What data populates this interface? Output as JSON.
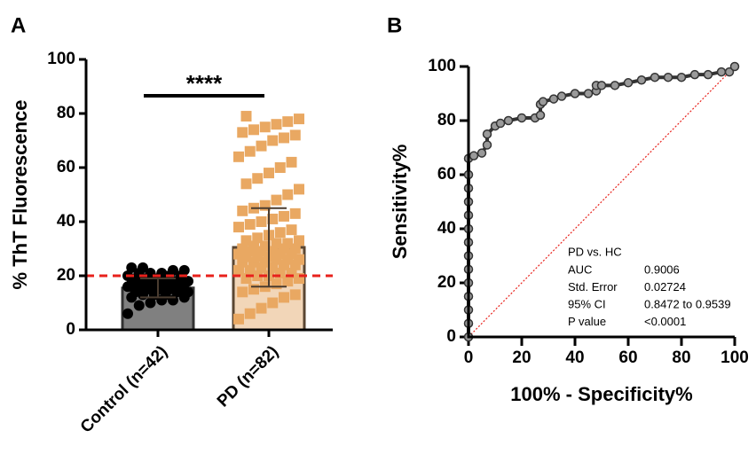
{
  "chart_data": [
    {
      "type": "bar",
      "panel_label": "A",
      "ylabel": "% ThT Fluorescence",
      "categories": [
        "Control (n=42)",
        "PD (n=82)"
      ],
      "values": [
        15.5,
        30.5
      ],
      "errors": [
        3.5,
        14.5
      ],
      "colors": [
        "#808080",
        "#f2d6b8"
      ],
      "point_colors": [
        "#000000",
        "#e9a862"
      ],
      "error_color": "#4a3c30",
      "points": [
        [
          6,
          9,
          10,
          11,
          11,
          12,
          12,
          13,
          13,
          13,
          14,
          14,
          14,
          15,
          15,
          15,
          15,
          16,
          16,
          16,
          16,
          17,
          17,
          17,
          17,
          18,
          18,
          18,
          18,
          19,
          19,
          19,
          20,
          20,
          20,
          21,
          21,
          21,
          22,
          22,
          23,
          23
        ],
        [
          4,
          6,
          8,
          10,
          12,
          13,
          14,
          15,
          16,
          17,
          18,
          19,
          19,
          20,
          20,
          21,
          21,
          22,
          22,
          23,
          23,
          24,
          24,
          25,
          25,
          25,
          26,
          26,
          26,
          27,
          27,
          27,
          28,
          28,
          28,
          29,
          29,
          29,
          30,
          30,
          30,
          31,
          31,
          32,
          32,
          33,
          33,
          34,
          35,
          36,
          37,
          38,
          39,
          40,
          41,
          42,
          43,
          44,
          45,
          46,
          48,
          50,
          52,
          54,
          56,
          58,
          60,
          62,
          64,
          66,
          68,
          70,
          71,
          72,
          73,
          74,
          75,
          76,
          77,
          78,
          79,
          29
        ]
      ],
      "significance": "****",
      "reference_line": 20,
      "reference_color": "#e8221c",
      "ylim": [
        0,
        100
      ],
      "yticks": [
        0,
        20,
        40,
        60,
        80,
        100
      ]
    },
    {
      "type": "line",
      "panel_label": "B",
      "xlabel": "100% - Specificity%",
      "ylabel": "Sensitivity%",
      "x": [
        0,
        0,
        0,
        0,
        0,
        0,
        0,
        0,
        0,
        0,
        0,
        0,
        0,
        0,
        2,
        5,
        7,
        7,
        10,
        12,
        15,
        20,
        25,
        27,
        27,
        28,
        32,
        35,
        40,
        45,
        48,
        48,
        50,
        55,
        60,
        65,
        70,
        75,
        80,
        85,
        90,
        95,
        98,
        100
      ],
      "values": [
        0,
        5,
        10,
        15,
        20,
        25,
        30,
        35,
        40,
        45,
        50,
        55,
        60,
        66,
        67,
        68,
        71,
        75,
        78,
        79,
        80,
        81,
        81,
        82,
        86,
        87,
        88,
        89,
        90,
        90,
        91,
        93,
        93,
        93,
        94,
        95,
        96,
        96,
        96,
        97,
        97,
        98,
        98,
        100
      ],
      "color": "#333333",
      "marker_color": "#9a9a9a",
      "diagonal": true,
      "diagonal_color": "#e8221c",
      "annotation": {
        "title": "PD vs. HC",
        "rows": [
          [
            "AUC",
            "0.9006"
          ],
          [
            "Std. Error",
            "0.02724"
          ],
          [
            "95% CI",
            "0.8472 to 0.9539"
          ],
          [
            "P value",
            "<0.0001"
          ]
        ]
      },
      "xlim": [
        0,
        100
      ],
      "xticks": [
        0,
        20,
        40,
        60,
        80,
        100
      ],
      "ylim": [
        0,
        100
      ],
      "yticks": [
        0,
        20,
        40,
        60,
        80,
        100
      ]
    }
  ]
}
